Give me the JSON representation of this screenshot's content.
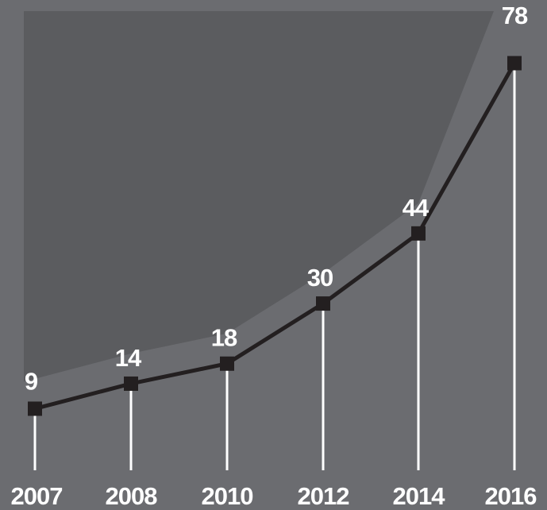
{
  "chart_data": {
    "type": "line",
    "categories": [
      "2007",
      "2008",
      "2010",
      "2012",
      "2014",
      "2016"
    ],
    "values": [
      9,
      14,
      18,
      30,
      44,
      78
    ],
    "ylim": [
      4,
      83
    ],
    "data_labels": [
      "9",
      "14",
      "18",
      "30",
      "44",
      "78"
    ],
    "grid": false,
    "legend": "none",
    "colors": {
      "background": "#6b6c70",
      "shade": "#5b5c5f",
      "line": "#231f20",
      "marker": "#231f20",
      "drop_lines": "#ffffff",
      "text": "#ffffff"
    }
  }
}
